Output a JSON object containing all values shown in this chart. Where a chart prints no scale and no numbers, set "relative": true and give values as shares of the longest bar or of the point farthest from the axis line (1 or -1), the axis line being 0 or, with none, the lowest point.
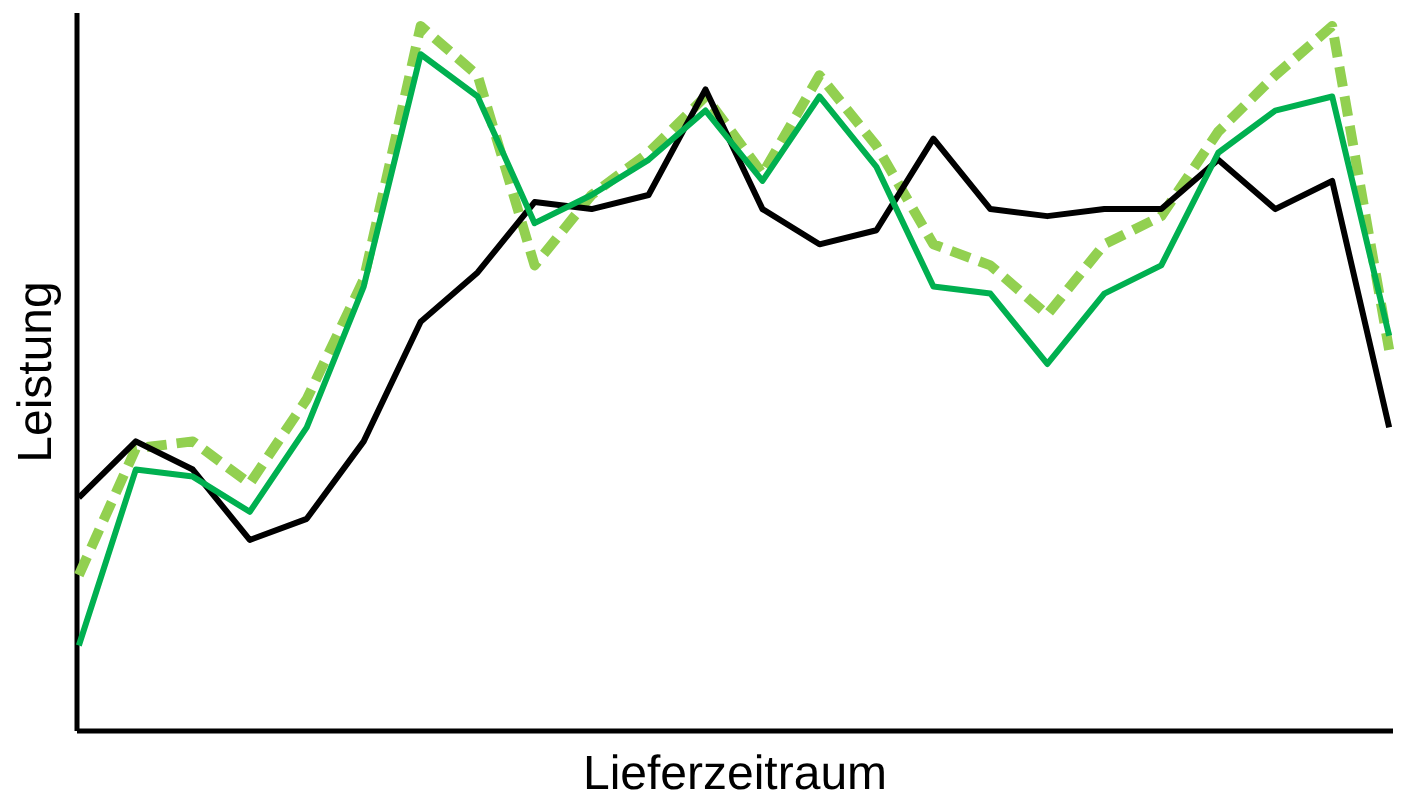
{
  "chart_data": {
    "type": "line",
    "relative": true,
    "xlabel": "Lieferzeitraum",
    "ylabel": "Leistung",
    "marker": "none",
    "categories": [
      null,
      null,
      null,
      null,
      null,
      null,
      null,
      null,
      null,
      null,
      null,
      null,
      null,
      null,
      null,
      null,
      null,
      null,
      null,
      null,
      null,
      null,
      null,
      null
    ],
    "series": [
      {
        "color": "#92d050",
        "line_style": "dashed",
        "values": [
          0.22,
          0.4,
          0.41,
          0.35,
          0.47,
          0.64,
          1,
          0.93,
          0.66,
          0.76,
          0.82,
          0.9,
          0.79,
          0.93,
          0.83,
          0.69,
          0.66,
          0.59,
          0.69,
          0.73,
          0.85,
          0.93,
          1,
          0.54
        ]
      },
      {
        "color": "#000000",
        "line_style": "solid",
        "values": [
          0.33,
          0.41,
          0.37,
          0.27,
          0.3,
          0.41,
          0.58,
          0.65,
          0.75,
          0.74,
          0.76,
          0.91,
          0.74,
          0.69,
          0.71,
          0.84,
          0.74,
          0.73,
          0.74,
          0.74,
          0.81,
          0.74,
          0.78,
          0.43
        ]
      },
      {
        "color": "#00b050",
        "line_style": "solid",
        "values": [
          0.12,
          0.37,
          0.36,
          0.31,
          0.43,
          0.63,
          0.96,
          0.9,
          0.72,
          0.76,
          0.81,
          0.88,
          0.78,
          0.9,
          0.8,
          0.63,
          0.62,
          0.52,
          0.62,
          0.66,
          0.82,
          0.88,
          0.9,
          0.56
        ]
      }
    ]
  }
}
